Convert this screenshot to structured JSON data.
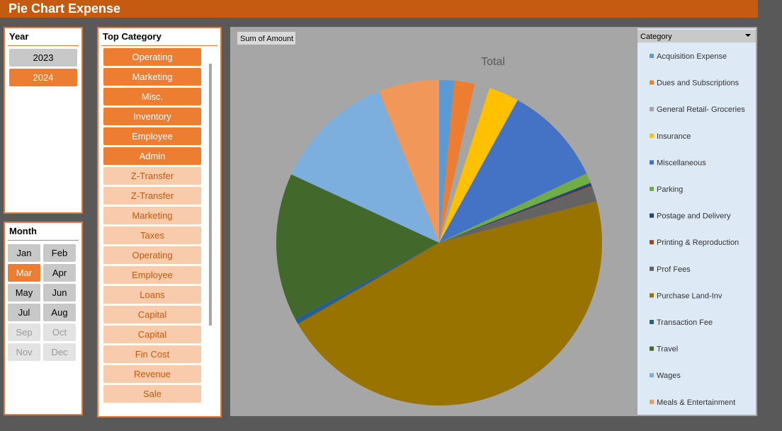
{
  "header": {
    "title": "Pie  Chart Expense"
  },
  "year_slicer": {
    "title": "Year",
    "items": [
      {
        "label": "2023",
        "state": "available"
      },
      {
        "label": "2024",
        "state": "selected"
      }
    ]
  },
  "month_slicer": {
    "title": "Month",
    "items": [
      {
        "label": "Jan",
        "state": "available"
      },
      {
        "label": "Feb",
        "state": "available"
      },
      {
        "label": "Mar",
        "state": "selected"
      },
      {
        "label": "Apr",
        "state": "available"
      },
      {
        "label": "May",
        "state": "available"
      },
      {
        "label": "Jun",
        "state": "available"
      },
      {
        "label": "Jul",
        "state": "available"
      },
      {
        "label": "Aug",
        "state": "available"
      },
      {
        "label": "Sep",
        "state": "empty"
      },
      {
        "label": "Oct",
        "state": "empty"
      },
      {
        "label": "Nov",
        "state": "empty"
      },
      {
        "label": "Dec",
        "state": "empty"
      }
    ]
  },
  "category_slicer": {
    "title": "Top Category",
    "items": [
      {
        "label": "Operating",
        "state": "selected"
      },
      {
        "label": "Marketing",
        "state": "selected"
      },
      {
        "label": "Misc.",
        "state": "selected"
      },
      {
        "label": "Inventory",
        "state": "selected"
      },
      {
        "label": "Employee",
        "state": "selected"
      },
      {
        "label": "Admin",
        "state": "selected"
      },
      {
        "label": "Z-Transfer",
        "state": "available"
      },
      {
        "label": "Z-Transfer",
        "state": "available"
      },
      {
        "label": "Marketing",
        "state": "available"
      },
      {
        "label": "Taxes",
        "state": "available"
      },
      {
        "label": "Operating",
        "state": "available"
      },
      {
        "label": "Employee",
        "state": "available"
      },
      {
        "label": "Loans",
        "state": "available"
      },
      {
        "label": "Capital",
        "state": "available"
      },
      {
        "label": "Capital",
        "state": "available"
      },
      {
        "label": "Fin Cost",
        "state": "available"
      },
      {
        "label": "Revenue",
        "state": "available"
      },
      {
        "label": "Sale",
        "state": "available"
      }
    ]
  },
  "chart_data": {
    "type": "pie",
    "title": "Total",
    "field_button": "Sum of Amount",
    "legend_title": "Category",
    "categories": [
      "Acquisition Expense",
      "Dues and Subscriptions",
      "General Retail- Groceries",
      "Insurance",
      "Miscellaneous",
      "Parking",
      "Postage and Delivery",
      "Printing & Reproduction",
      "Prof Fees",
      "Purchase Land-Inv",
      "Transaction Fee",
      "Travel",
      "Wages",
      "Meals & Entertainment"
    ],
    "values": [
      1.5,
      2,
      1.5,
      3,
      10,
      1,
      0.3,
      0.1,
      1.5,
      45.8,
      0.5,
      14.7,
      12.1,
      6
    ],
    "colors": [
      "#5b9bd5",
      "#ed7d31",
      "#a5a5a5",
      "#ffc000",
      "#4472c4",
      "#70ad47",
      "#264478",
      "#9e480e",
      "#636363",
      "#997300",
      "#255e91",
      "#43682b",
      "#7cafdd",
      "#f1975a"
    ]
  }
}
